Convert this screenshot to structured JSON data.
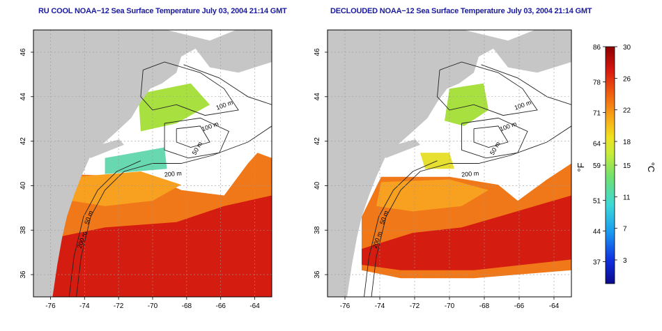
{
  "colors": {
    "land": "#c6c6c6",
    "cloud": "#ffffff",
    "title": "#1a1aa0",
    "contour": "#222222",
    "grid": "#9a9a9a"
  },
  "panels": [
    {
      "title": "RU COOL NOAA−12 Sea Surface Temperature July 03, 2004 21:14 GMT",
      "contour_labels": [
        "100 m",
        "100 m",
        "50 m",
        "200 m",
        "50 m",
        "200 m"
      ]
    },
    {
      "title": "DECLOUDED NOAA−12 Sea Surface Temperature July 03, 2004 21:14 GMT",
      "contour_labels": [
        "100 m",
        "100 m",
        "50 m",
        "200 m",
        "50 m",
        "200 m"
      ]
    }
  ],
  "axes": {
    "x_ticks": [
      "-76",
      "-74",
      "-72",
      "-70",
      "-68",
      "-66",
      "-64"
    ],
    "y_ticks": [
      "36",
      "38",
      "40",
      "42",
      "44",
      "46"
    ]
  },
  "colorbar": {
    "fahrenheit_label": "°F",
    "celsius_label": "°C",
    "fahrenheit_ticks": [
      "86",
      "78",
      "71",
      "64",
      "59",
      "51",
      "44",
      "37"
    ],
    "celsius_ticks": [
      "30",
      "26",
      "22",
      "18",
      "15",
      "11",
      "7",
      "3"
    ],
    "range_c": [
      0,
      30
    ]
  }
}
